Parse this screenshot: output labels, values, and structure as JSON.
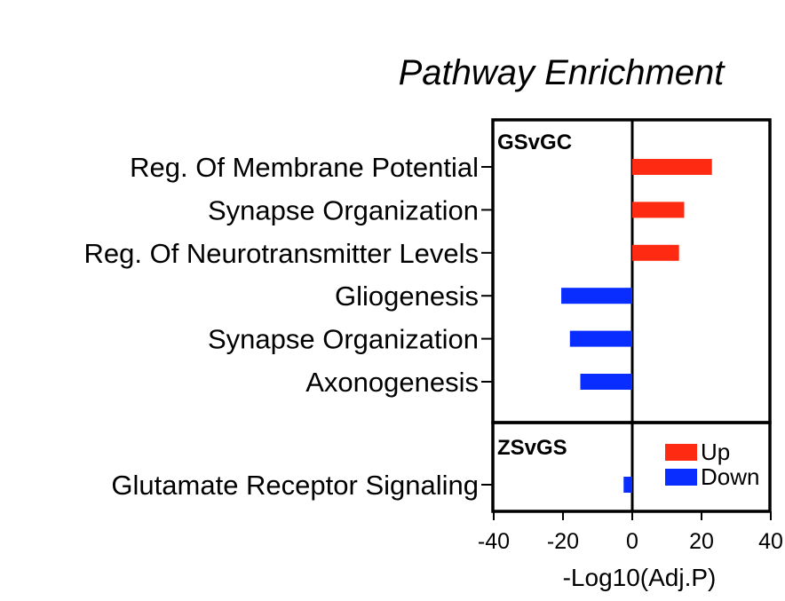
{
  "chart_data": {
    "type": "bar",
    "orientation": "horizontal",
    "title": "Pathway Enrichment",
    "xlabel": "-Log10(Adj.P)",
    "xlim": [
      -40,
      40
    ],
    "xticks": [
      -40,
      -20,
      0,
      20,
      40
    ],
    "grid": false,
    "legend_placement": "bottom-right",
    "colors": {
      "Up": "#ff2a12",
      "Down": "#0a2dff"
    },
    "legend": [
      {
        "name": "Up",
        "color": "#ff2a12"
      },
      {
        "name": "Down",
        "color": "#0a2dff"
      }
    ],
    "panels": [
      {
        "label": "GSvGC",
        "bars": [
          {
            "category": "Reg. Of Membrane Potential",
            "value": 23,
            "direction": "Up"
          },
          {
            "category": "Synapse Organization",
            "value": 15,
            "direction": "Up"
          },
          {
            "category": "Reg. Of Neurotransmitter Levels",
            "value": 13.5,
            "direction": "Up"
          },
          {
            "category": "Gliogenesis",
            "value": -20.5,
            "direction": "Down"
          },
          {
            "category": "Synapse Organization",
            "value": -18,
            "direction": "Down"
          },
          {
            "category": "Axonogenesis",
            "value": -15,
            "direction": "Down"
          }
        ]
      },
      {
        "label": "ZSvGS",
        "bars": [
          {
            "category": "Glutamate Receptor Signaling",
            "value": -2.5,
            "direction": "Down"
          }
        ]
      }
    ]
  }
}
